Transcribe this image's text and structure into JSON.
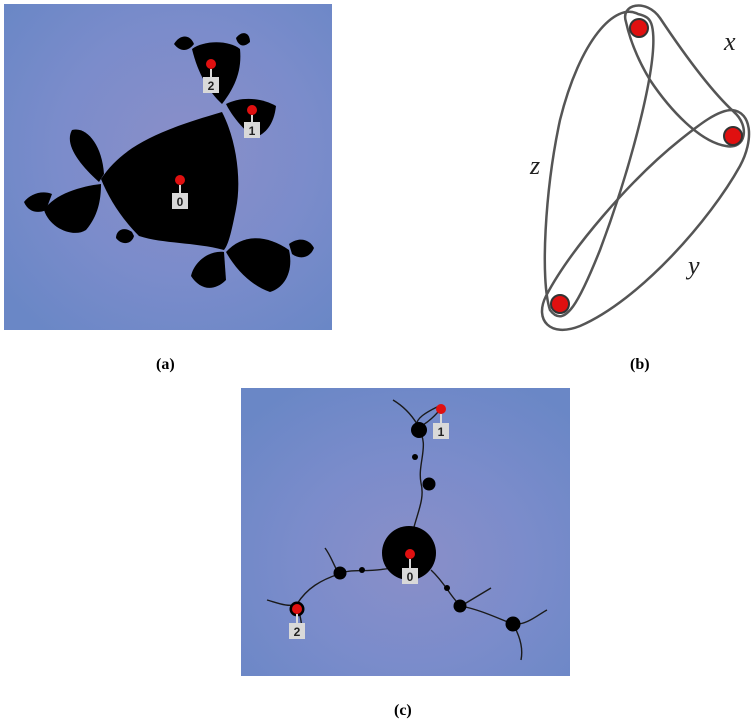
{
  "figure": {
    "panel_a": {
      "caption": "(a)",
      "points": [
        {
          "label": "0"
        },
        {
          "label": "1"
        },
        {
          "label": "2"
        }
      ]
    },
    "panel_b": {
      "caption": "(b)",
      "edges": [
        {
          "label": "x"
        },
        {
          "label": "y"
        },
        {
          "label": "z"
        }
      ]
    },
    "panel_c": {
      "caption": "(c)",
      "points": [
        {
          "label": "0"
        },
        {
          "label": "1"
        },
        {
          "label": "2"
        }
      ]
    }
  },
  "colors": {
    "background_blue": "#6a87c6",
    "fractal": "#000000",
    "marker": "#e01010",
    "label_box": "#d9d9d9"
  }
}
